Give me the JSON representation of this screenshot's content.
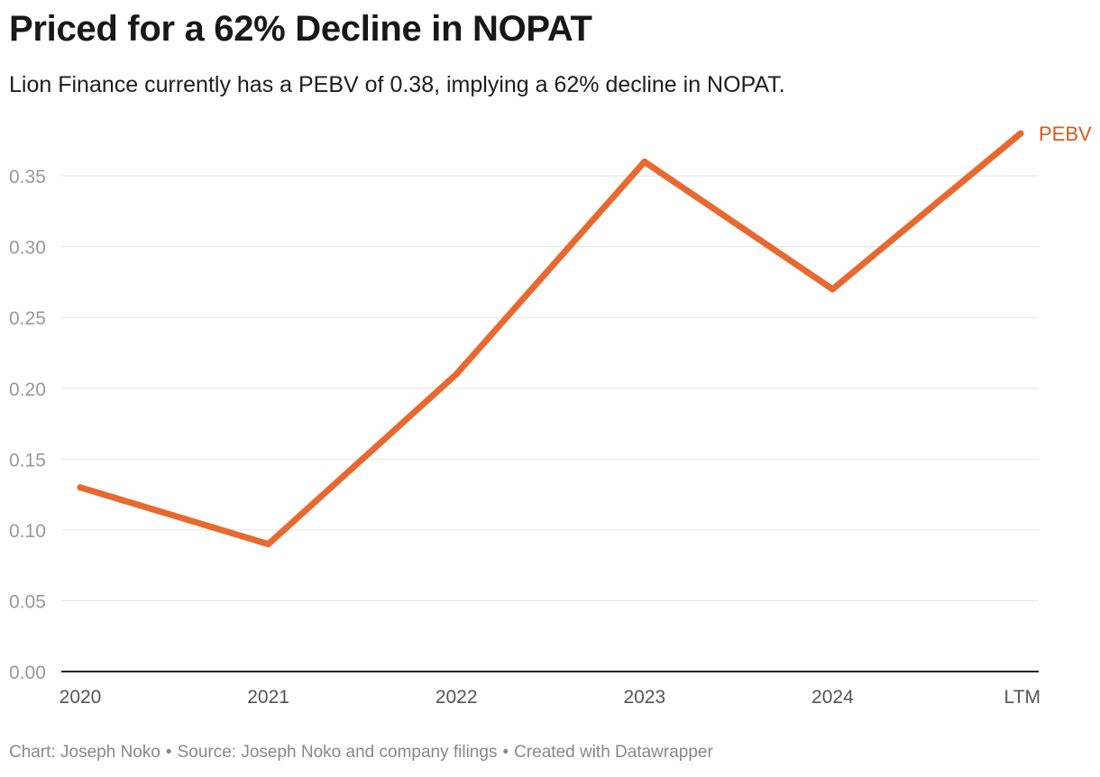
{
  "header": {
    "title": "Priced for a 62% Decline in NOPAT",
    "subtitle": "Lion Finance currently has a PEBV of 0.38, implying a 62% decline in NOPAT."
  },
  "footer": {
    "chart_by": "Chart: Joseph Noko",
    "separator": "•",
    "source": "Source: Joseph Noko and company filings",
    "created_with": "Created with Datawrapper"
  },
  "colors": {
    "series": "#E8692F",
    "series_label": "#D65A1E",
    "grid": "#e3e3e3",
    "axis": "#222222",
    "tick_label": "#999999",
    "x_tick_label": "#555555"
  },
  "chart_data": {
    "type": "line",
    "title": "Priced for a 62% Decline in NOPAT",
    "subtitle": "Lion Finance currently has a PEBV of 0.38, implying a 62% decline in NOPAT.",
    "xlabel": "",
    "ylabel": "",
    "categories": [
      "2020",
      "2021",
      "2022",
      "2023",
      "2024",
      "LTM"
    ],
    "series": [
      {
        "name": "PEBV",
        "values": [
          0.13,
          0.09,
          0.21,
          0.36,
          0.27,
          0.38
        ]
      }
    ],
    "ylim": [
      0,
      0.38
    ],
    "yticks": [
      "0.00",
      "0.05",
      "0.10",
      "0.15",
      "0.20",
      "0.25",
      "0.30",
      "0.35"
    ],
    "grid": true,
    "legend": "direct label at line end"
  }
}
